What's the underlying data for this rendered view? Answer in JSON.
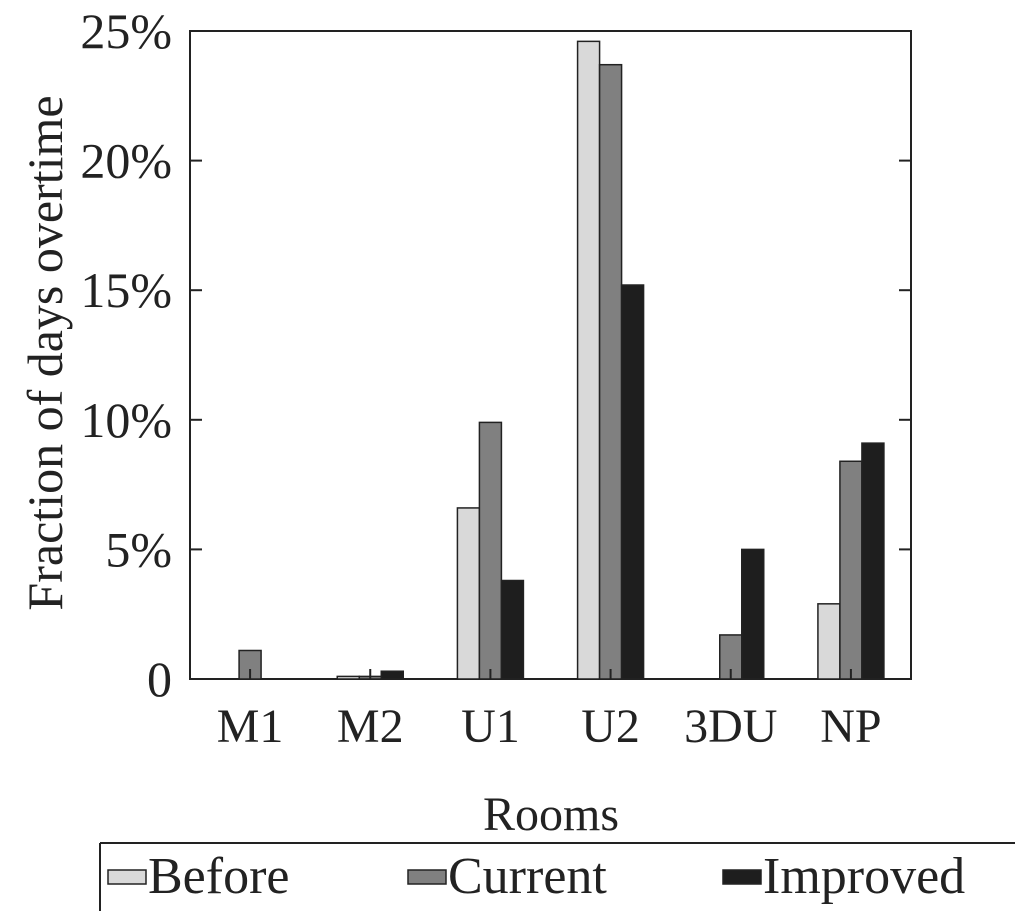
{
  "chart_data": {
    "type": "bar",
    "categories": [
      "M1",
      "M2",
      "U1",
      "U2",
      "3DU",
      "NP"
    ],
    "series": [
      {
        "name": "Before",
        "color": "#d9d9d9",
        "values": [
          0,
          0.1,
          6.6,
          24.6,
          0,
          2.9
        ]
      },
      {
        "name": "Current",
        "color": "#808080",
        "values": [
          1.1,
          0.1,
          9.9,
          23.7,
          1.7,
          8.4
        ]
      },
      {
        "name": "Improved",
        "color": "#1e1e1e",
        "values": [
          0,
          0.3,
          3.8,
          15.2,
          5.0,
          9.1
        ]
      }
    ],
    "xlabel": "Rooms",
    "ylabel": "Fraction of days overtime",
    "ylim": [
      0,
      25
    ],
    "yticks": [
      0,
      5,
      10,
      15,
      20,
      25
    ],
    "ytick_labels": [
      "0",
      "5%",
      "10%",
      "15%",
      "20%",
      "25%"
    ],
    "grid": false,
    "legend_position": "bottom"
  }
}
